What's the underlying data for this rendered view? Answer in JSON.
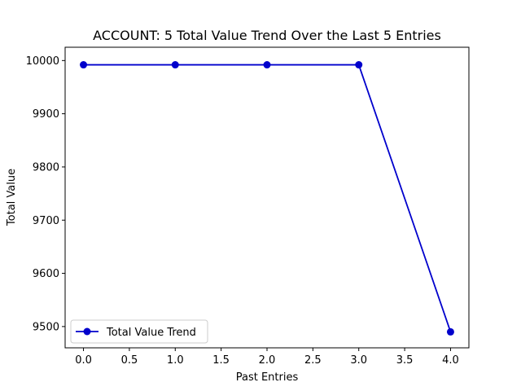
{
  "chart_data": {
    "type": "line",
    "title": "ACCOUNT: 5 Total Value Trend Over the Last 5 Entries",
    "xlabel": "Past Entries",
    "ylabel": "Total Value",
    "xlim": [
      -0.2,
      4.2
    ],
    "ylim": [
      9460,
      10025
    ],
    "x_ticks": [
      0.0,
      0.5,
      1.0,
      1.5,
      2.0,
      2.5,
      3.0,
      3.5,
      4.0
    ],
    "x_tick_labels": [
      "0.0",
      "0.5",
      "1.0",
      "1.5",
      "2.0",
      "2.5",
      "3.0",
      "3.5",
      "4.0"
    ],
    "y_ticks": [
      9500,
      9600,
      9700,
      9800,
      9900,
      10000
    ],
    "y_tick_labels": [
      "9500",
      "9600",
      "9700",
      "9800",
      "9900",
      "10000"
    ],
    "grid": false,
    "legend_position": "lower-left",
    "series": [
      {
        "name": "Total Value Trend",
        "color": "#0000cc",
        "marker": "circle",
        "x": [
          0,
          1,
          2,
          3,
          4
        ],
        "y": [
          9992,
          9992,
          9992,
          9992,
          9490
        ]
      }
    ]
  }
}
